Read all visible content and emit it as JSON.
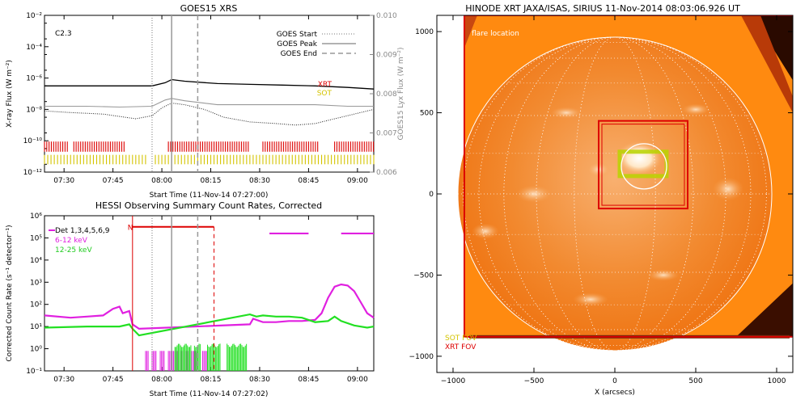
{
  "colors": {
    "xrt_red": "#dd0000",
    "sot_yellow": "#d4c400",
    "hessi_magenta": "#e020e0",
    "hessi_green": "#22e022",
    "lyx_gray": "#999999",
    "sun_orange": "#f06a08",
    "sun_bg": "#ff8a10"
  },
  "chart_data": [
    {
      "id": "goes",
      "type": "line",
      "title": "GOES15 XRS",
      "xlabel": "Start Time (11-Nov-14 07:27:00)",
      "ylabel": "X-ray Flux (W m⁻²)",
      "y2label": "GOES15 Lyx Flux (W m⁻²)",
      "x_range_min": [
        -3,
        98
      ],
      "ylim_log10": [
        -12,
        -2
      ],
      "y2lim": [
        0.006,
        0.01
      ],
      "x_ticks": [
        {
          "min": 3,
          "label": "07:30"
        },
        {
          "min": 18,
          "label": "07:45"
        },
        {
          "min": 33,
          "label": "08:00"
        },
        {
          "min": 48,
          "label": "08:15"
        },
        {
          "min": 63,
          "label": "08:30"
        },
        {
          "min": 78,
          "label": "08:45"
        },
        {
          "min": 93,
          "label": "09:00"
        }
      ],
      "y_ticks": [
        {
          "exp": -2,
          "label": "10⁻²"
        },
        {
          "exp": -4,
          "label": "10⁻⁴"
        },
        {
          "exp": -6,
          "label": "10⁻⁶"
        },
        {
          "exp": -8,
          "label": "10⁻⁸"
        },
        {
          "exp": -10,
          "label": "10⁻¹⁰"
        },
        {
          "exp": -12,
          "label": "10⁻¹²"
        }
      ],
      "y2_ticks": [
        {
          "v": 0.01,
          "label": "0.010"
        },
        {
          "v": 0.009,
          "label": "0.009"
        },
        {
          "v": 0.008,
          "label": "0.008"
        },
        {
          "v": 0.007,
          "label": "0.007"
        },
        {
          "v": 0.006,
          "label": "0.006"
        }
      ],
      "class_label": "C2.3",
      "legend": [
        "GOES Start",
        "GOES Peak",
        "GOES End"
      ],
      "event_lines_min": {
        "start": 30,
        "peak": 36,
        "end": 44
      },
      "series": [
        {
          "name": "",
          "style": "solid-black",
          "x": [
            -3,
            10,
            20,
            30,
            34,
            36,
            40,
            50,
            60,
            70,
            80,
            90,
            98
          ],
          "log10": [
            -6.5,
            -6.5,
            -6.5,
            -6.5,
            -6.3,
            -6.1,
            -6.2,
            -6.35,
            -6.4,
            -6.45,
            -6.5,
            -6.6,
            -6.7
          ]
        },
        {
          "name": "",
          "style": "solid-gray",
          "x": [
            -3,
            10,
            20,
            30,
            34,
            36,
            40,
            50,
            60,
            70,
            80,
            90,
            98
          ],
          "log10": [
            -7.8,
            -7.8,
            -7.85,
            -7.8,
            -7.4,
            -7.3,
            -7.45,
            -7.7,
            -7.7,
            -7.7,
            -7.7,
            -7.8,
            -7.8
          ]
        },
        {
          "name": "",
          "style": "dotted-black",
          "x": [
            -3,
            5,
            15,
            25,
            30,
            33,
            36,
            40,
            46,
            52,
            60,
            68,
            74,
            80,
            86,
            92,
            98
          ],
          "log10": [
            -8.1,
            -8.2,
            -8.3,
            -8.6,
            -8.4,
            -7.9,
            -7.6,
            -7.7,
            -8.0,
            -8.5,
            -8.8,
            -8.9,
            -9.0,
            -8.9,
            -8.6,
            -8.3,
            -8.0
          ]
        }
      ],
      "coverage_labels": [
        "XRT",
        "SOT"
      ],
      "xrt_coverage_min": [
        [
          -3,
          4
        ],
        [
          6,
          22
        ],
        [
          35,
          60
        ],
        [
          64,
          81
        ],
        [
          86,
          98
        ]
      ],
      "sot_coverage_min": [
        [
          -3,
          28
        ],
        [
          31,
          98
        ]
      ]
    },
    {
      "id": "hessi",
      "type": "line",
      "title": "HESSI Observing Summary Count Rates, Corrected",
      "xlabel": "Start Time (11-Nov-14 07:27:02)",
      "ylabel": "Corrected Count Rate (s⁻¹ detector⁻¹)",
      "x_range_min": [
        -3,
        98
      ],
      "ylim_log10": [
        -1,
        6
      ],
      "x_ticks": [
        {
          "min": 3,
          "label": "07:30"
        },
        {
          "min": 18,
          "label": "07:45"
        },
        {
          "min": 33,
          "label": "08:00"
        },
        {
          "min": 48,
          "label": "08:15"
        },
        {
          "min": 63,
          "label": "08:30"
        },
        {
          "min": 78,
          "label": "08:45"
        },
        {
          "min": 93,
          "label": "09:00"
        }
      ],
      "y_ticks": [
        {
          "exp": 6,
          "label": "10⁶"
        },
        {
          "exp": 5,
          "label": "10⁵"
        },
        {
          "exp": 4,
          "label": "10⁴"
        },
        {
          "exp": 3,
          "label": "10³"
        },
        {
          "exp": 2,
          "label": "10²"
        },
        {
          "exp": 1,
          "label": "10¹"
        },
        {
          "exp": 0,
          "label": "10⁰"
        },
        {
          "exp": -1,
          "label": "10⁻¹"
        }
      ],
      "legend": [
        "Det 1,3,4,5,6,9",
        "6-12 keV",
        "12-25 keV"
      ],
      "night_marker": "N",
      "night_min": [
        24,
        49
      ],
      "attenuator_line_min": 49,
      "event_lines_min": {
        "start": 30,
        "peak": 36,
        "end": 44
      },
      "top_bars_min": [
        [
          66,
          78
        ],
        [
          88,
          99
        ]
      ],
      "series": [
        {
          "name": "6-12 keV",
          "color": "magenta",
          "x": [
            -3,
            5,
            10,
            15,
            18,
            20,
            21,
            23,
            24,
            26,
            60,
            61,
            64,
            68,
            72,
            76,
            80,
            82,
            84,
            86,
            88,
            90,
            92,
            94,
            96,
            98
          ],
          "log10": [
            1.5,
            1.4,
            1.45,
            1.5,
            1.8,
            1.9,
            1.6,
            1.7,
            1.1,
            0.9,
            1.1,
            1.35,
            1.2,
            1.2,
            1.25,
            1.25,
            1.3,
            1.6,
            2.3,
            2.8,
            2.9,
            2.85,
            2.6,
            2.1,
            1.6,
            1.4
          ]
        },
        {
          "name": "12-25 keV",
          "color": "green",
          "x": [
            -3,
            10,
            20,
            23,
            24,
            26,
            60,
            62,
            64,
            68,
            72,
            76,
            80,
            84,
            86,
            88,
            92,
            96,
            98
          ],
          "log10": [
            0.95,
            1.0,
            1.0,
            1.1,
            0.9,
            0.6,
            1.55,
            1.45,
            1.5,
            1.45,
            1.45,
            1.4,
            1.2,
            1.25,
            1.45,
            1.25,
            1.05,
            0.95,
            1.0
          ]
        }
      ],
      "magenta_gap_bars_min": [
        [
          28,
          29
        ],
        [
          30,
          31.5
        ],
        [
          32.5,
          34
        ],
        [
          35,
          38
        ],
        [
          39,
          41
        ],
        [
          42,
          44.5
        ],
        [
          45.5,
          47
        ]
      ],
      "green_gap_bars_min": [
        [
          37,
          42
        ],
        [
          43,
          45
        ],
        [
          47,
          51
        ],
        [
          53,
          59
        ]
      ]
    },
    {
      "id": "xrt",
      "type": "image",
      "title": "HINODE XRT JAXA/ISAS, SIRIUS 11-Nov-2014 08:03:06.926 UT",
      "xlabel": "X (arcsecs)",
      "ylabel": "",
      "xlim": [
        -1100,
        1100
      ],
      "ylim": [
        -1100,
        1100
      ],
      "x_ticks": [
        -1000,
        -500,
        0,
        500,
        1000
      ],
      "y_ticks": [
        -1000,
        -500,
        0,
        500,
        1000
      ],
      "tick_labels": {
        "-1000": "−1000",
        "-500": "−500",
        "0": "0",
        "500": "500",
        "1000": "1000"
      },
      "solar_radius_arcsec": 970,
      "grid": "on",
      "annotations": [
        "flare location"
      ],
      "fov_labels": [
        "SOT FOV",
        "XRT FOV"
      ],
      "xrt_fov": {
        "x": [
          -930,
          1100
        ],
        "y": [
          -880,
          1100
        ]
      },
      "flare_box": {
        "x": [
          -100,
          450
        ],
        "y": [
          -90,
          450
        ]
      },
      "flare_circle": {
        "cx": 180,
        "cy": 170,
        "r": 140
      },
      "sot_box": {
        "x": [
          30,
          320
        ],
        "y": [
          110,
          260
        ]
      }
    }
  ]
}
